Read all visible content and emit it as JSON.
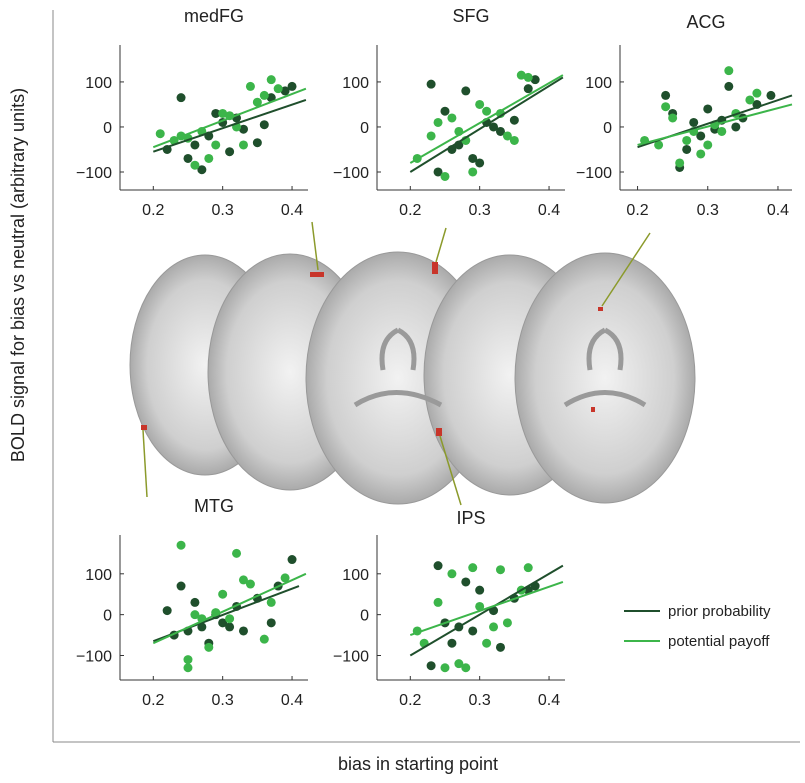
{
  "figure": {
    "ylabel": "BOLD signal for bias vs neutral (arbitrary units)",
    "xlabel": "bias in starting point"
  },
  "chart_data": [
    {
      "type": "scatter",
      "title": "medFG",
      "xlim": [
        0.152,
        0.423
      ],
      "ylim": [
        -140,
        182
      ],
      "xticks": [
        0.2,
        0.3,
        0.4
      ],
      "yticks": [
        {
          "value": -100,
          "label": "−100"
        },
        0,
        100
      ],
      "series": [
        {
          "name": "prior probability",
          "color": "#1f4f2c",
          "x": [
            0.22,
            0.24,
            0.25,
            0.26,
            0.27,
            0.28,
            0.29,
            0.3,
            0.31,
            0.32,
            0.33,
            0.35,
            0.36,
            0.37,
            0.39,
            0.4
          ],
          "values": [
            -50,
            65,
            -70,
            -40,
            -95,
            -20,
            30,
            10,
            -55,
            20,
            -5,
            -35,
            5,
            65,
            80,
            90
          ],
          "fit": {
            "x": [
              0.2,
              0.42
            ],
            "y": [
              -55,
              60
            ]
          }
        },
        {
          "name": "potential payoff",
          "color": "#3cb54a",
          "x": [
            0.21,
            0.23,
            0.24,
            0.25,
            0.26,
            0.27,
            0.28,
            0.29,
            0.3,
            0.31,
            0.32,
            0.33,
            0.34,
            0.35,
            0.37,
            0.38,
            0.36
          ],
          "values": [
            -15,
            -30,
            -20,
            -25,
            -85,
            -10,
            -70,
            -40,
            30,
            25,
            0,
            -40,
            90,
            55,
            105,
            85,
            70
          ],
          "fit": {
            "x": [
              0.2,
              0.42
            ],
            "y": [
              -45,
              85
            ]
          }
        }
      ]
    },
    {
      "type": "scatter",
      "title": "SFG",
      "xlim": [
        0.152,
        0.423
      ],
      "ylim": [
        -140,
        182
      ],
      "xticks": [
        0.2,
        0.3,
        0.4
      ],
      "yticks": [
        {
          "value": -100,
          "label": "−100"
        },
        0,
        100
      ],
      "series": [
        {
          "name": "prior probability",
          "color": "#1f4f2c",
          "x": [
            0.23,
            0.24,
            0.25,
            0.26,
            0.27,
            0.28,
            0.29,
            0.3,
            0.31,
            0.32,
            0.33,
            0.35,
            0.37,
            0.38
          ],
          "values": [
            95,
            -100,
            35,
            -50,
            -40,
            80,
            -70,
            -80,
            10,
            0,
            -10,
            15,
            85,
            105
          ],
          "fit": {
            "x": [
              0.2,
              0.42
            ],
            "y": [
              -100,
              110
            ]
          }
        },
        {
          "name": "potential payoff",
          "color": "#3cb54a",
          "x": [
            0.21,
            0.23,
            0.24,
            0.25,
            0.26,
            0.27,
            0.28,
            0.29,
            0.3,
            0.31,
            0.33,
            0.34,
            0.36,
            0.37,
            0.35
          ],
          "values": [
            -70,
            -20,
            10,
            -110,
            20,
            -10,
            -30,
            -100,
            50,
            35,
            30,
            -20,
            115,
            110,
            -30
          ],
          "fit": {
            "x": [
              0.2,
              0.42
            ],
            "y": [
              -80,
              115
            ]
          }
        }
      ]
    },
    {
      "type": "scatter",
      "title": "ACG",
      "xlim": [
        0.175,
        0.42
      ],
      "ylim": [
        -140,
        182
      ],
      "xticks": [
        0.2,
        0.3,
        0.4
      ],
      "yticks": [
        {
          "value": -100,
          "label": "−100"
        },
        0,
        100
      ],
      "series": [
        {
          "name": "prior probability",
          "color": "#1f4f2c",
          "x": [
            0.24,
            0.25,
            0.26,
            0.27,
            0.28,
            0.29,
            0.3,
            0.31,
            0.32,
            0.33,
            0.34,
            0.35,
            0.37,
            0.39
          ],
          "values": [
            70,
            30,
            -90,
            -50,
            10,
            -20,
            40,
            -5,
            15,
            90,
            0,
            20,
            50,
            70
          ],
          "fit": {
            "x": [
              0.2,
              0.42
            ],
            "y": [
              -45,
              70
            ]
          }
        },
        {
          "name": "potential payoff",
          "color": "#3cb54a",
          "x": [
            0.21,
            0.23,
            0.24,
            0.25,
            0.26,
            0.27,
            0.28,
            0.29,
            0.3,
            0.31,
            0.32,
            0.33,
            0.34,
            0.36,
            0.37
          ],
          "values": [
            -30,
            -40,
            45,
            20,
            -80,
            -30,
            -10,
            -60,
            -40,
            5,
            -10,
            125,
            30,
            60,
            75
          ],
          "fit": {
            "x": [
              0.2,
              0.42
            ],
            "y": [
              -40,
              50
            ]
          }
        }
      ]
    },
    {
      "type": "scatter",
      "title": "MTG",
      "xlim": [
        0.152,
        0.423
      ],
      "ylim": [
        -160,
        195
      ],
      "xticks": [
        0.2,
        0.3,
        0.4
      ],
      "yticks": [
        {
          "value": -100,
          "label": "−100"
        },
        0,
        100
      ],
      "series": [
        {
          "name": "prior probability",
          "color": "#1f4f2c",
          "x": [
            0.22,
            0.23,
            0.24,
            0.25,
            0.26,
            0.27,
            0.28,
            0.29,
            0.3,
            0.31,
            0.32,
            0.33,
            0.35,
            0.37,
            0.38,
            0.4
          ],
          "values": [
            10,
            -50,
            70,
            -40,
            30,
            -30,
            -70,
            0,
            -20,
            -30,
            20,
            -40,
            40,
            -20,
            70,
            135
          ],
          "fit": {
            "x": [
              0.2,
              0.41
            ],
            "y": [
              -65,
              70
            ]
          }
        },
        {
          "name": "potential payoff",
          "color": "#3cb54a",
          "x": [
            0.24,
            0.25,
            0.25,
            0.26,
            0.27,
            0.28,
            0.29,
            0.3,
            0.31,
            0.32,
            0.33,
            0.34,
            0.36,
            0.37,
            0.39
          ],
          "values": [
            170,
            -110,
            -130,
            0,
            -10,
            -80,
            5,
            50,
            -10,
            150,
            85,
            75,
            -60,
            30,
            90
          ],
          "fit": {
            "x": [
              0.2,
              0.42
            ],
            "y": [
              -70,
              100
            ]
          }
        }
      ]
    },
    {
      "type": "scatter",
      "title": "IPS",
      "xlim": [
        0.152,
        0.423
      ],
      "ylim": [
        -160,
        195
      ],
      "xticks": [
        0.2,
        0.3,
        0.4
      ],
      "yticks": [
        {
          "value": -100,
          "label": "−100"
        },
        0,
        100
      ],
      "series": [
        {
          "name": "prior probability",
          "color": "#1f4f2c",
          "x": [
            0.23,
            0.24,
            0.25,
            0.26,
            0.27,
            0.28,
            0.29,
            0.3,
            0.32,
            0.33,
            0.35,
            0.37,
            0.38
          ],
          "values": [
            -125,
            120,
            -20,
            -70,
            -30,
            80,
            -40,
            60,
            10,
            -80,
            40,
            60,
            70
          ],
          "fit": {
            "x": [
              0.2,
              0.42
            ],
            "y": [
              -100,
              120
            ]
          }
        },
        {
          "name": "potential payoff",
          "color": "#3cb54a",
          "x": [
            0.21,
            0.22,
            0.24,
            0.25,
            0.26,
            0.27,
            0.28,
            0.29,
            0.3,
            0.31,
            0.32,
            0.33,
            0.34,
            0.36,
            0.37
          ],
          "values": [
            -40,
            -70,
            30,
            -130,
            100,
            -120,
            -130,
            115,
            20,
            -70,
            -30,
            110,
            -20,
            60,
            115
          ],
          "fit": {
            "x": [
              0.2,
              0.42
            ],
            "y": [
              -50,
              80
            ]
          }
        }
      ]
    }
  ]
}
